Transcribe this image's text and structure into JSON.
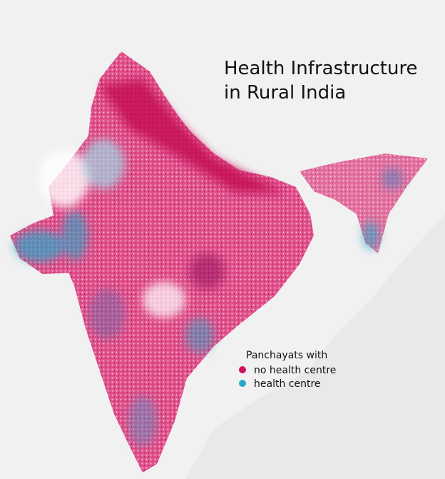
{
  "title": {
    "lines": [
      "Health Infrastructure",
      "in Rural India"
    ]
  },
  "legend": {
    "title": "Panchayats with",
    "items": [
      {
        "label": "no health centre",
        "color": "#d1135f"
      },
      {
        "label": "health centre",
        "color": "#2aa6c8"
      }
    ]
  }
}
